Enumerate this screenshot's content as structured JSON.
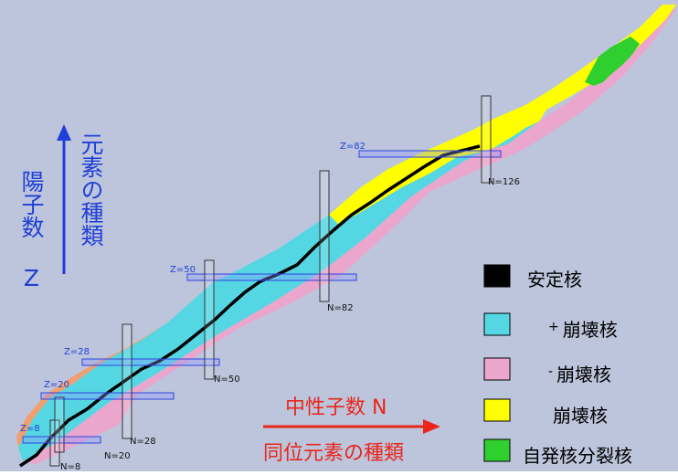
{
  "colors": {
    "background": "#bdc5dc",
    "stable": "#000000",
    "beta_plus": "#55d7e3",
    "beta_minus": "#eaa6cc",
    "alpha": "#ffff00",
    "fission": "#2fcf2f",
    "proton_emission": "#f0a070",
    "axis_blue": "#1f3fd6",
    "axis_red": "#e8261a"
  },
  "axes": {
    "z_label": "陽子数 Z",
    "z_sublabel": "元素の種類",
    "n_label": "中性子数 N",
    "n_sublabel": "同位元素の種類"
  },
  "magic": {
    "z": [
      "Z=8",
      "Z=20",
      "Z=28",
      "Z=50",
      "Z=82"
    ],
    "n": [
      "N=8",
      "N=20",
      "N=28",
      "N=50",
      "N=82",
      "N=126"
    ]
  },
  "legend": [
    {
      "name": "legend-stable",
      "prefix": "",
      "text": "安定核",
      "color": "#000000"
    },
    {
      "name": "legend-beta-plus",
      "prefix": "+",
      "text": "崩壊核",
      "color": "#55d7e3"
    },
    {
      "name": "legend-beta-minus",
      "prefix": "-",
      "text": "崩壊核",
      "color": "#eaa6cc"
    },
    {
      "name": "legend-alpha",
      "prefix": "",
      "text": "崩壊核",
      "color": "#ffff00"
    },
    {
      "name": "legend-fission",
      "prefix": "",
      "text": "自発核分裂核",
      "color": "#2fcf2f"
    }
  ]
}
